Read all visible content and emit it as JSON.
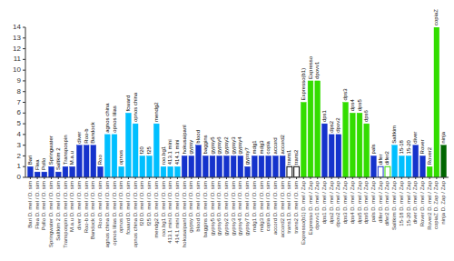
{
  "chart_data": {
    "type": "bar",
    "categories": [
      "Bari D. mel / D. sim",
      "Flea D. mel / D. sim",
      "Pollo D. mel / D. sim",
      "Springwater D. mel / D. sim",
      "Saltkim 2 D. mel / D. sim",
      "Transpospin D. mel / D. sim",
      "M.a.u D. mel / D. sim",
      "diver D. mel / D. sim",
      "Roo-b D. mel / D. sim",
      "Bandock D. mel / D. sim",
      "Roo D. mel / D. sim",
      "agnos china D. mel / D. sim",
      "opnos lilias D. mel / D. sim",
      "opnos D. mel / D. sim",
      "fcward D. mel / D. sim",
      "opnos china D. mel / D. sim",
      "f20 D. mel / D. sim",
      "f25 D. mel / D. sim",
      "mendg2 D. mel / D. sim",
      "roo.bg1 D. mel / D. sim",
      "413.1 mini D. mel / D. sim",
      "414.1 mini D. mel / D. sim",
      "hokusaipanl D. mel / D. sim",
      "gypsy D. mel / D. sim",
      "blood D. mel / D. sim",
      "baggins D. mel / D. sim",
      "gypsy5 D. mel / D. sim",
      "gypsy6 D. mel / D. sim",
      "gypsy2 D. mel / D. sim",
      "gypsy3 D. mel / D. sim",
      "gypsy4 D. mel / D. sim",
      "gypsy7 D. mel / D. sim",
      "mdg1 D. mel / D. sim",
      "mdg3 D. mel / D. sim",
      "copia D. mel / D. sim",
      "accord D. mel / D. sim",
      "accord2 D. mel / D. sim",
      "trans1 D. mel / D. sim",
      "trans2 D. mel / D. sim",
      "Expresso(b1) D. mel / Zap",
      "Expresso D. mel / Zap",
      "dpovv1 D. mel / Zap",
      "dps1 D. mel / Zap",
      "dps2 D. mel / Zap",
      "dpov2 D. mel / Zap",
      "dps3 D. mel / Zap",
      "dps4 D. mel / Zap",
      "dps5 D. mel / Zap",
      "dps6 D. mel / Zap",
      "pals D. mel / Zap",
      "difer D. mel / Zap",
      "difer2 D. mel / Zap",
      "Saltkim D. mel / Zap",
      "15-18 D. mel / Zap",
      "15-20 D. mel / Zap",
      "diver D. mel / Zap",
      "Rover D. mel / Zap",
      "Rover2 D. mel / Zap",
      "copiaZ D. Zap / Zap",
      "ninja D. Zap / Zap"
    ],
    "values": [
      1,
      0.5,
      0.5,
      1,
      0.5,
      1,
      1,
      3,
      3,
      3,
      1,
      4,
      4,
      1,
      6,
      5,
      2,
      2,
      5,
      1,
      1,
      1,
      2,
      2,
      3,
      2,
      2,
      2,
      2,
      2,
      2,
      1,
      2,
      2,
      2,
      2,
      2,
      1,
      1,
      7,
      9,
      9,
      5,
      4,
      4,
      7,
      6,
      6,
      5,
      2,
      1,
      1,
      3,
      2,
      2,
      3,
      2,
      1,
      14,
      3
    ],
    "annotations": [
      "Bari",
      "Flea",
      "Pollo",
      "Springwater",
      "Saltkim 2",
      "Transpospin",
      "M.a.u",
      "diver",
      "Roo-b",
      "Bandock",
      "Roo",
      "agnos china",
      "opnos lilias",
      "opnos",
      "fcward",
      "opnos china",
      "f20",
      "f25",
      "mendg2",
      "roo.bg1",
      "413.1 mini",
      "414.1 mini",
      "hokusaipanl",
      "gypsy",
      "blood",
      "baggins",
      "gypsy5",
      "gypsy6",
      "gypsy2",
      "gypsy3",
      "gypsy4",
      "gypsy7",
      "mdg1",
      "mdg3",
      "copia",
      "accord",
      "accord2",
      "trans1",
      "trans2",
      "Expresso(b1)",
      "Expresso",
      "dpovv1",
      "dps1",
      "dps2",
      "dpov2",
      "dps3",
      "dps4",
      "dps5",
      "dps6",
      "pals",
      "difer",
      "difer2",
      "Saltkim",
      "15-18",
      "15-20",
      "diver",
      "Rover",
      "Rover2",
      "copiaZ",
      "ninja"
    ],
    "colors": [
      "#1533cc",
      "#1533cc",
      "#1533cc",
      "#1533cc",
      "#1533cc",
      "#1533cc",
      "#1533cc",
      "#1533cc",
      "#1533cc",
      "#1533cc",
      "#1533cc",
      "#00bfff",
      "#00bfff",
      "#00bfff",
      "#00bfff",
      "#00bfff",
      "#00bfff",
      "#00bfff",
      "#00bfff",
      "#00bfff",
      "#00bfff",
      "#00bfff",
      "#1533cc",
      "#1533cc",
      "#1533cc",
      "#1533cc",
      "#1533cc",
      "#1533cc",
      "#1533cc",
      "#1533cc",
      "#1533cc",
      "#1533cc",
      "#1533cc",
      "#1533cc",
      "#1533cc",
      "#1533cc",
      "#1533cc",
      {
        "fill": "none",
        "edge": "#000000"
      },
      {
        "fill": "none",
        "edge": "#000000"
      },
      "#33dd00",
      "#33dd00",
      "#33dd00",
      "#1533cc",
      "#1533cc",
      "#1533cc",
      "#33dd00",
      "#33dd00",
      "#33dd00",
      "#33dd00",
      "#1533cc",
      {
        "fill": "none",
        "edge": "#1533cc"
      },
      {
        "fill": "none",
        "edge": "#33dd00"
      },
      "#00bfff",
      "#00bfff",
      "#00bfff",
      "#1533cc",
      "#1533cc",
      "#33dd00",
      "#33dd00",
      "#006600"
    ],
    "ylim": [
      0,
      14
    ],
    "yticks": [
      0,
      1,
      2,
      3,
      4,
      5,
      6,
      7,
      8,
      9,
      10,
      11,
      12,
      13,
      14
    ],
    "grid": false
  }
}
